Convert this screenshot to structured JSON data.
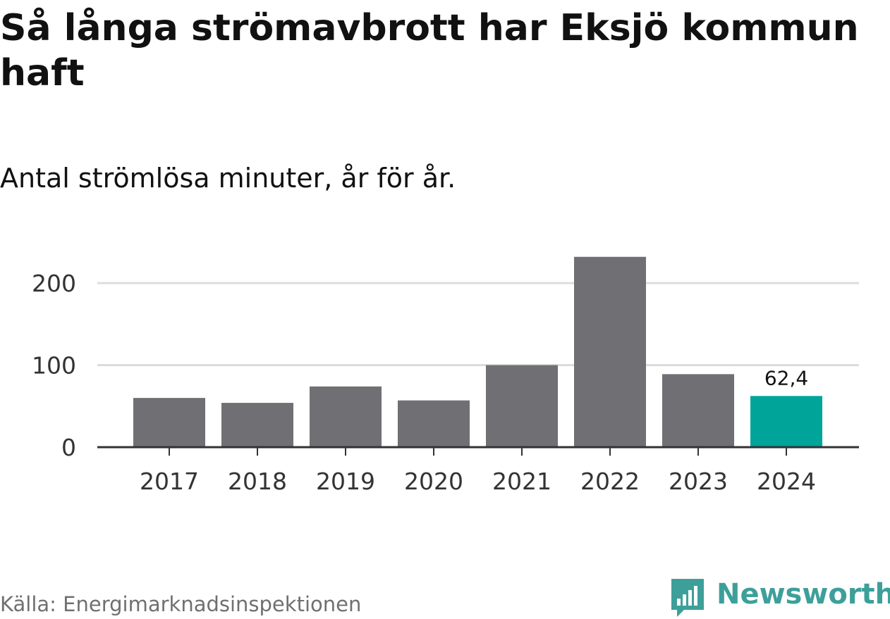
{
  "header": {
    "title": "Så långa strömavbrott har Eksjö kommun haft",
    "subtitle": "Antal strömlösa minuter, år för år."
  },
  "footer": {
    "source": "Källa: Energimarknadsinspektionen",
    "brand": "Newsworthy"
  },
  "colors": {
    "bar": "#706f74",
    "highlight": "#00a499",
    "grid": "#dcdcdc",
    "axis": "#333333",
    "brand": "#3d9f9a"
  },
  "chart_data": {
    "type": "bar",
    "title": "Så långa strömavbrott har Eksjö kommun haft",
    "subtitle": "Antal strömlösa minuter, år för år.",
    "categories": [
      "2017",
      "2018",
      "2019",
      "2020",
      "2021",
      "2022",
      "2023",
      "2024"
    ],
    "values": [
      60,
      54,
      74,
      57,
      100,
      232,
      89,
      62.4
    ],
    "ylim": [
      0,
      240
    ],
    "yticks": [
      0,
      100,
      200
    ],
    "grid": true,
    "highlight_index": 7,
    "data_labels": [
      {
        "index": 7,
        "text": "62,4"
      }
    ]
  }
}
